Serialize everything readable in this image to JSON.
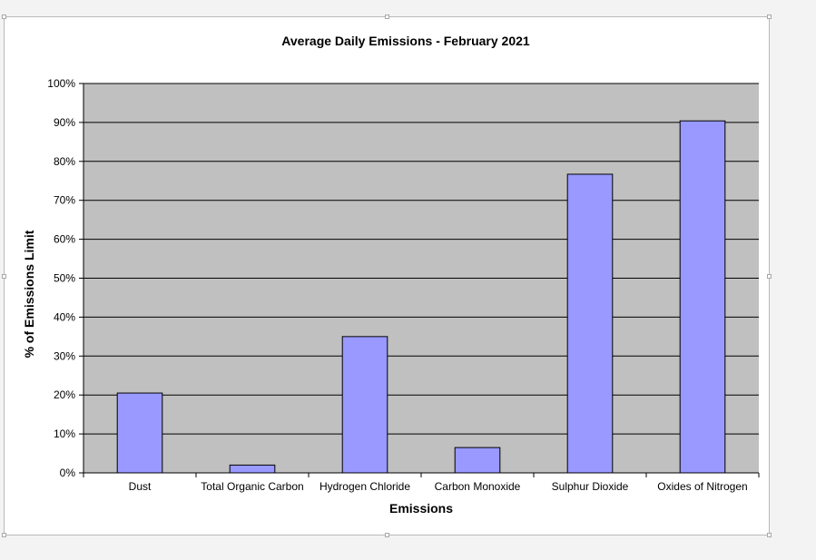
{
  "chart_data": {
    "type": "bar",
    "title": "Average Daily Emissions - February 2021",
    "xlabel": "Emissions",
    "ylabel": "% of Emissions Limit",
    "categories": [
      "Dust",
      "Total Organic Carbon",
      "Hydrogen Chloride",
      "Carbon Monoxide",
      "Sulphur Dioxide",
      "Oxides of Nitrogen"
    ],
    "values": [
      20.5,
      2,
      35,
      6.5,
      76.7,
      90.4
    ],
    "ylim": [
      0,
      100
    ],
    "yticks": [
      "0%",
      "10%",
      "20%",
      "30%",
      "40%",
      "50%",
      "60%",
      "70%",
      "80%",
      "90%",
      "100%"
    ],
    "grid": true,
    "legend": "none",
    "colors": {
      "bar": "#9999ff",
      "plot_background": "#c0c0c0",
      "gridline": "#000000"
    }
  }
}
